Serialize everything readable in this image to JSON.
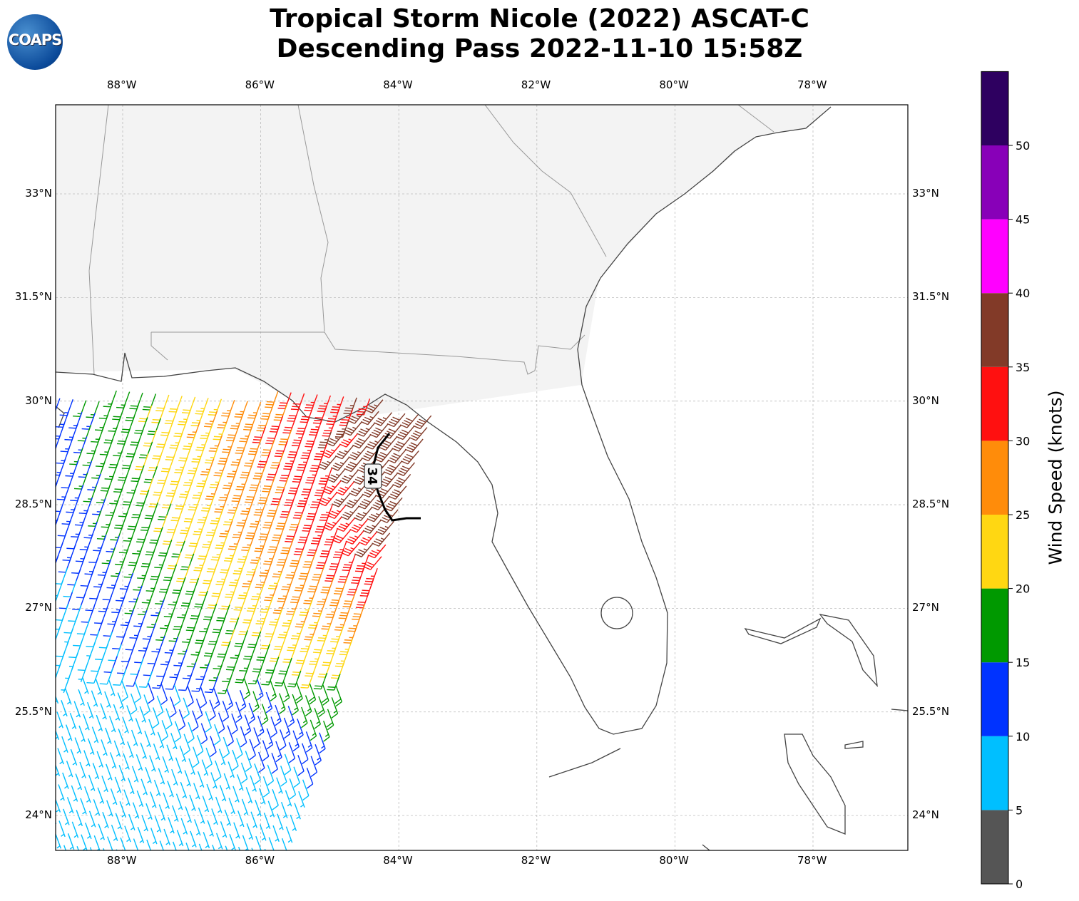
{
  "title_line1": "Tropical Storm Nicole (2022) ASCAT-C",
  "title_line2": "Descending Pass 2022-11-10 15:58Z",
  "logo_text": "COAPS",
  "lon_ticks": [
    "88°W",
    "86°W",
    "84°W",
    "82°W",
    "80°W",
    "78°W"
  ],
  "lat_ticks": [
    "33°N",
    "31.5°N",
    "30°N",
    "28.5°N",
    "27°N",
    "25.5°N",
    "24°N"
  ],
  "contour_label": "34",
  "colorbar": {
    "label": "Wind Speed (knots)",
    "ticks": [
      "0",
      "5",
      "10",
      "15",
      "20",
      "25",
      "30",
      "35",
      "40",
      "45",
      "50"
    ],
    "bins": [
      {
        "min": 0,
        "max": 5,
        "color": "#555555"
      },
      {
        "min": 5,
        "max": 10,
        "color": "#00bfff"
      },
      {
        "min": 10,
        "max": 15,
        "color": "#0033ff"
      },
      {
        "min": 15,
        "max": 20,
        "color": "#009900"
      },
      {
        "min": 20,
        "max": 25,
        "color": "#ffd712"
      },
      {
        "min": 25,
        "max": 30,
        "color": "#ff8c0a"
      },
      {
        "min": 30,
        "max": 35,
        "color": "#ff1010"
      },
      {
        "min": 35,
        "max": 40,
        "color": "#823a28"
      },
      {
        "min": 40,
        "max": 45,
        "color": "#ff00ff"
      },
      {
        "min": 45,
        "max": 50,
        "color": "#8800b8"
      },
      {
        "min": 50,
        "max": 55,
        "color": "#2e0060"
      }
    ]
  }
}
